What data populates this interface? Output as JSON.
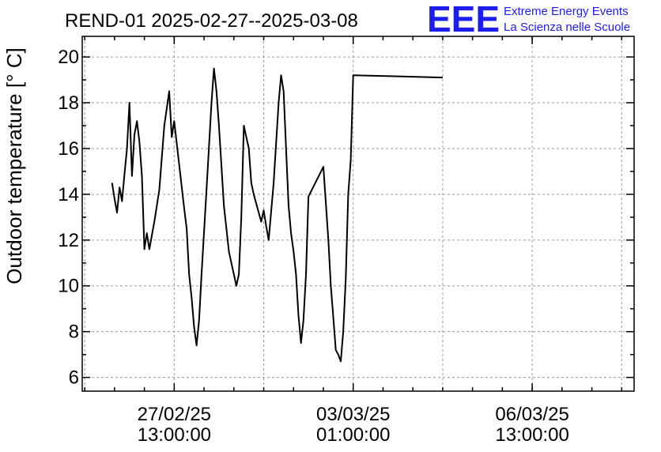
{
  "header": {
    "title": "REND-01 2025-02-27--2025-03-08",
    "logo": "EEE",
    "logo_line1": "Extreme Energy Events",
    "logo_line2": "La Scienza nelle Scuole"
  },
  "colors": {
    "logo": "#1d1df0",
    "line": "#000000",
    "grid": "#9a9a9a"
  },
  "chart_data": {
    "type": "line",
    "title": "REND-01 2025-02-27--2025-03-08",
    "ylabel": "Outdoor temperature [° C]",
    "xlabel": "",
    "ylim": [
      5.4,
      20.9
    ],
    "yticks": [
      6,
      8,
      10,
      12,
      14,
      16,
      18,
      20
    ],
    "xlim_hours_from_2025_02_26_00": [
      0,
      222
    ],
    "xticks": [
      {
        "line1": "27/02/25",
        "line2": "13:00:00",
        "t": 37
      },
      {
        "line1": "03/03/25",
        "line2": "01:00:00",
        "t": 109
      },
      {
        "line1": "06/03/25",
        "line2": "13:00:00",
        "t": 181
      }
    ],
    "grid": true,
    "series": [
      {
        "values": [
          [
            12,
            14.5
          ],
          [
            13,
            13.8
          ],
          [
            14,
            13.2
          ],
          [
            15,
            14.3
          ],
          [
            16,
            13.7
          ],
          [
            17,
            14.9
          ],
          [
            18,
            16.0
          ],
          [
            19,
            18.0
          ],
          [
            20,
            14.8
          ],
          [
            21,
            16.6
          ],
          [
            22,
            17.2
          ],
          [
            23,
            16.3
          ],
          [
            24,
            14.8
          ],
          [
            25,
            11.6
          ],
          [
            26,
            12.3
          ],
          [
            27,
            11.6
          ],
          [
            29,
            12.8
          ],
          [
            31,
            14.2
          ],
          [
            33,
            17.0
          ],
          [
            35,
            18.5
          ],
          [
            36,
            16.5
          ],
          [
            37,
            17.2
          ],
          [
            39,
            15.3
          ],
          [
            41,
            13.4
          ],
          [
            42,
            12.5
          ],
          [
            43,
            10.5
          ],
          [
            44,
            9.5
          ],
          [
            45,
            8.2
          ],
          [
            46,
            7.4
          ],
          [
            47,
            8.5
          ],
          [
            48,
            10.5
          ],
          [
            50,
            14.2
          ],
          [
            52,
            18.0
          ],
          [
            53,
            19.5
          ],
          [
            54,
            18.5
          ],
          [
            55,
            17.0
          ],
          [
            57,
            13.5
          ],
          [
            59,
            11.5
          ],
          [
            61,
            10.5
          ],
          [
            62,
            10.0
          ],
          [
            63,
            10.5
          ],
          [
            64,
            13.0
          ],
          [
            65,
            17.0
          ],
          [
            66,
            16.5
          ],
          [
            67,
            16.0
          ],
          [
            68,
            14.5
          ],
          [
            69,
            14.0
          ],
          [
            71,
            13.2
          ],
          [
            72,
            12.8
          ],
          [
            73,
            13.3
          ],
          [
            74,
            12.6
          ],
          [
            75,
            12.0
          ],
          [
            77,
            14.5
          ],
          [
            79,
            18.0
          ],
          [
            80,
            19.2
          ],
          [
            81,
            18.5
          ],
          [
            82,
            16.0
          ],
          [
            83,
            13.5
          ],
          [
            84,
            12.3
          ],
          [
            85,
            11.5
          ],
          [
            86,
            10.5
          ],
          [
            87,
            8.7
          ],
          [
            88,
            7.5
          ],
          [
            89,
            8.5
          ],
          [
            90,
            10.5
          ],
          [
            91,
            13.9
          ],
          [
            97,
            15.2
          ],
          [
            99,
            12.0
          ],
          [
            100,
            10.0
          ],
          [
            101,
            8.6
          ],
          [
            102,
            7.2
          ],
          [
            103,
            7.0
          ],
          [
            104,
            6.7
          ],
          [
            105,
            8.0
          ],
          [
            106,
            10.3
          ],
          [
            107,
            14.0
          ],
          [
            108,
            15.5
          ],
          [
            109,
            19.2
          ],
          [
            145,
            19.1
          ]
        ]
      }
    ]
  }
}
